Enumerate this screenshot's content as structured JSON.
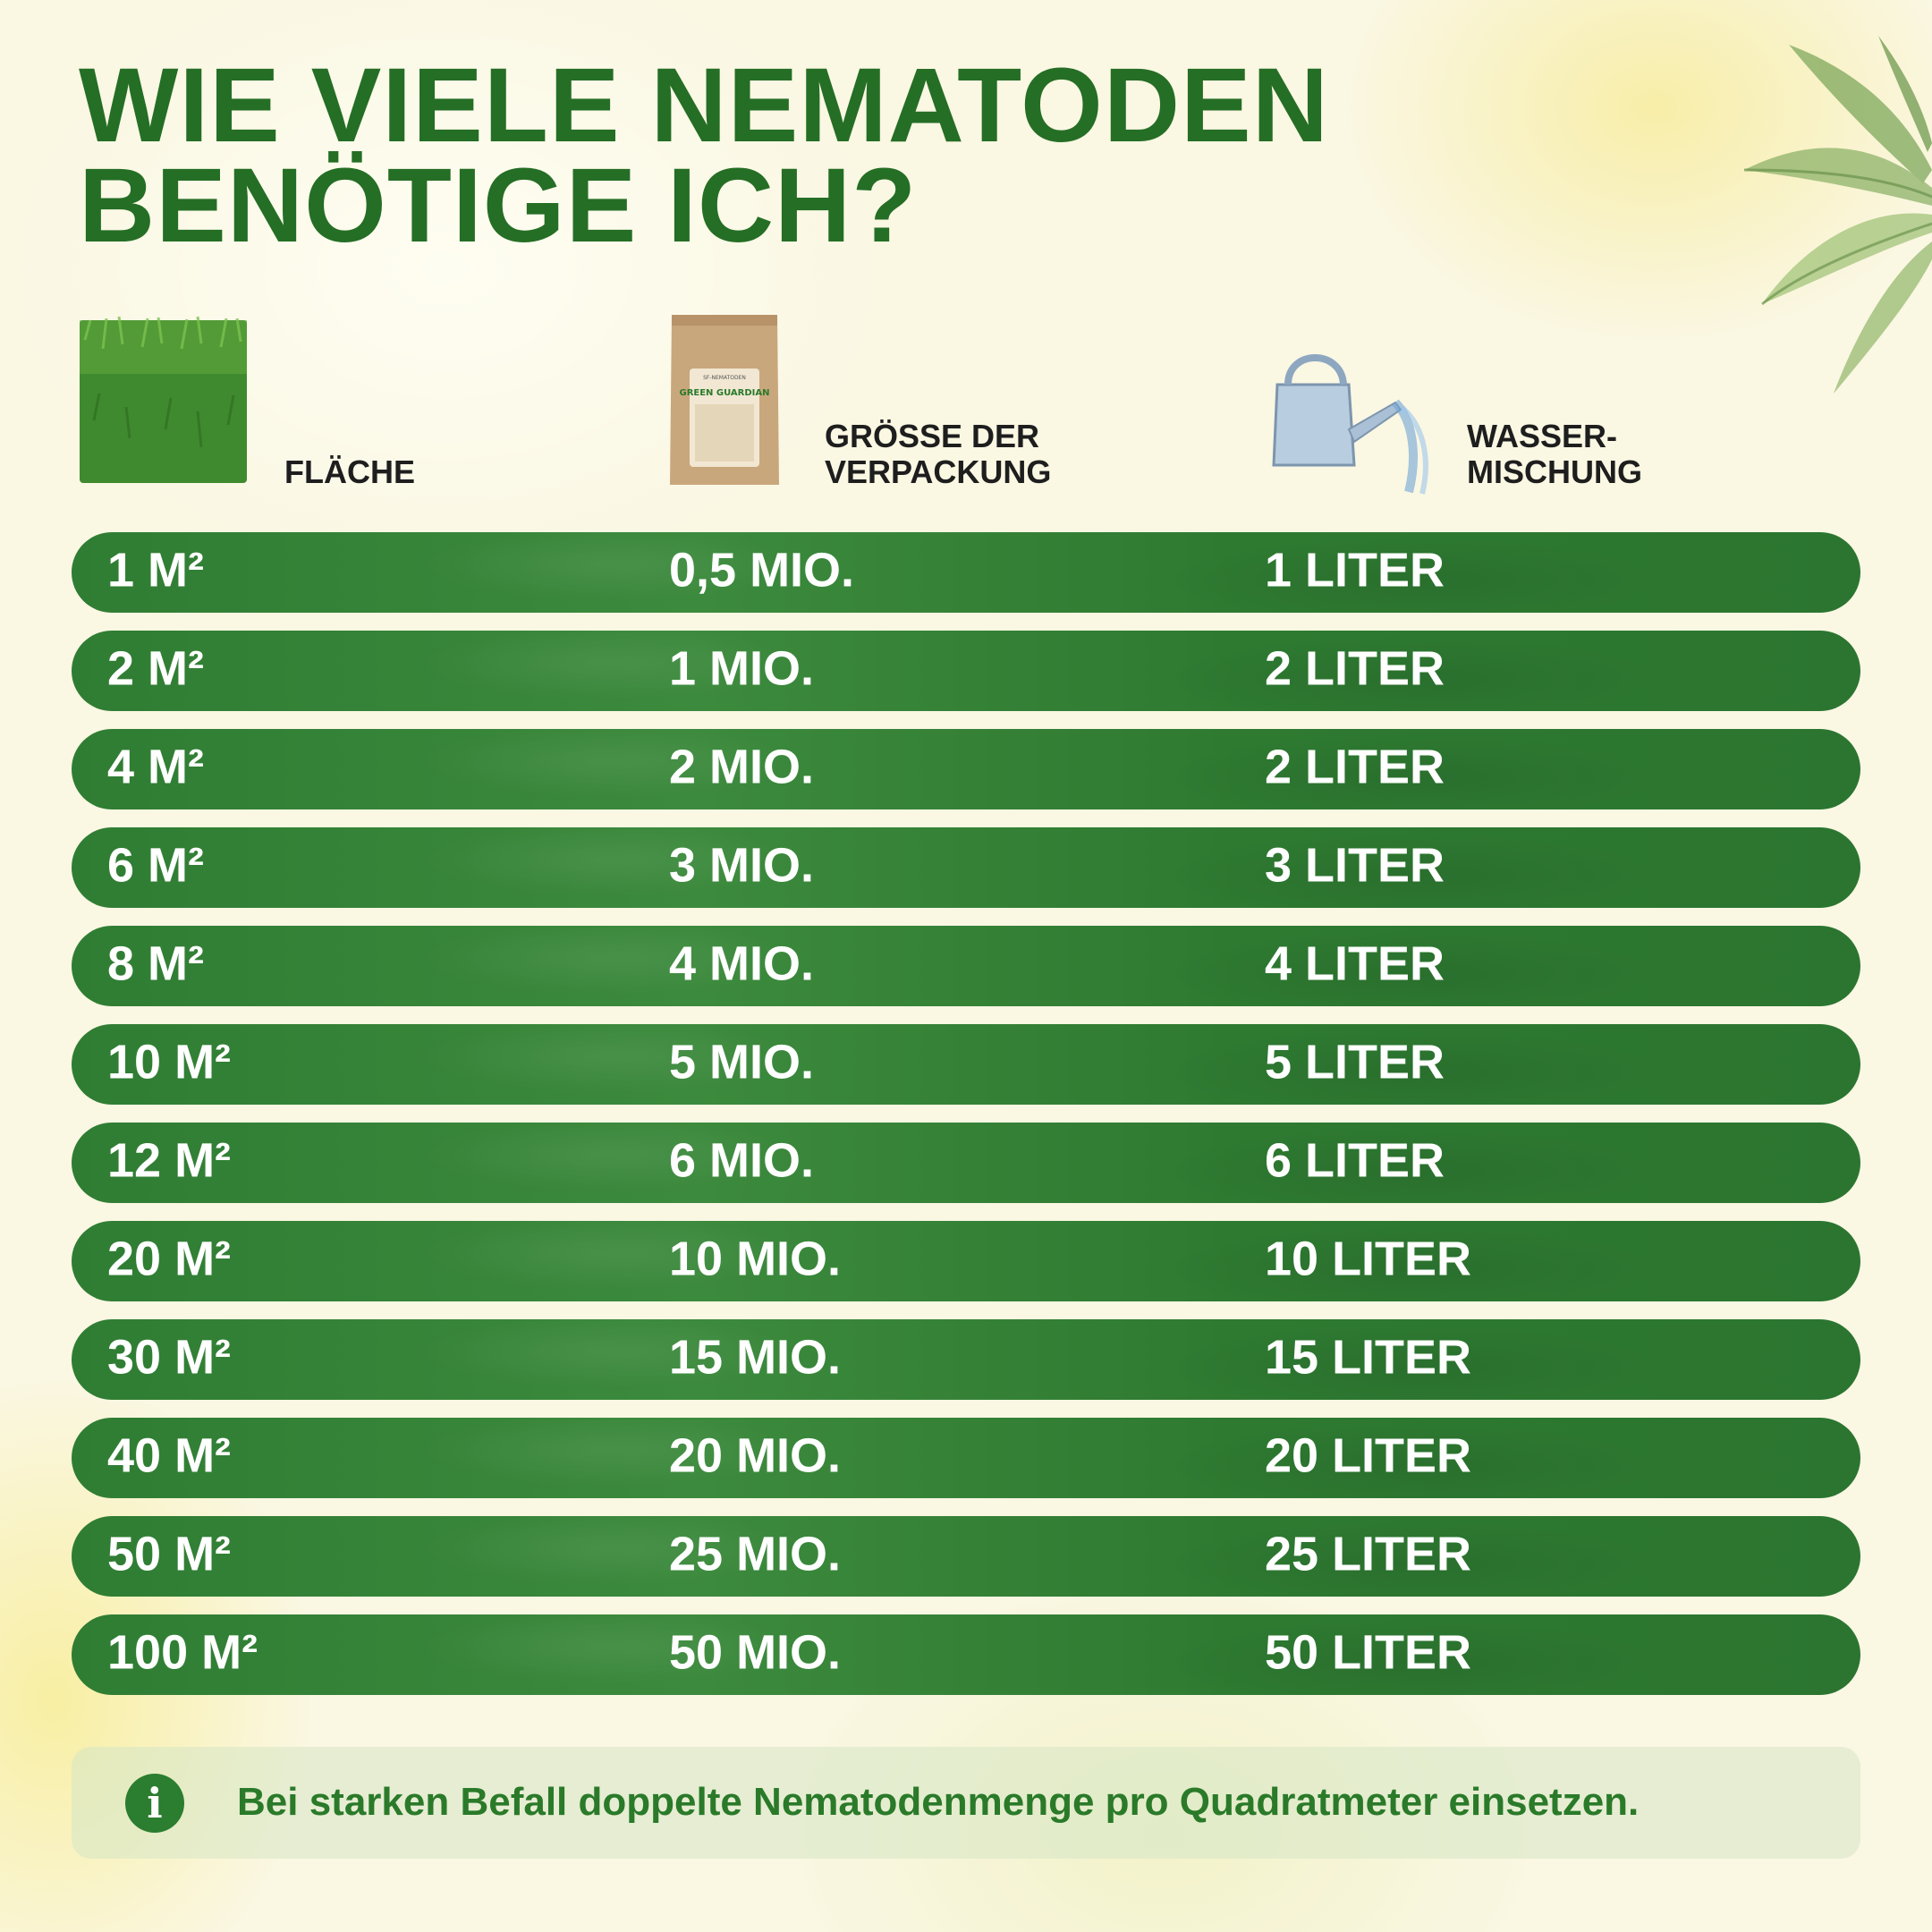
{
  "title_lines": [
    "WIE VIELE NEMATODEN",
    "BENÖTIGE ICH?"
  ],
  "columns": {
    "area": {
      "label_lines": [
        "FLÄCHE"
      ],
      "icon": "grass-icon"
    },
    "package": {
      "label_lines": [
        "GRÖßE DER",
        "VERPACKUNG"
      ],
      "icon": "nematode-package-icon",
      "package_brand": "GREEN GUARDIAN"
    },
    "water": {
      "label_lines": [
        "WASSER-",
        "MISCHUNG"
      ],
      "icon": "watering-can-icon"
    }
  },
  "rows": [
    {
      "area": "1 M²",
      "package": "0,5 MIO.",
      "water": "1 LITER"
    },
    {
      "area": "2 M²",
      "package": "1 MIO.",
      "water": "2 LITER"
    },
    {
      "area": "4 M²",
      "package": "2 MIO.",
      "water": "2 LITER"
    },
    {
      "area": "6 M²",
      "package": "3 MIO.",
      "water": "3 LITER"
    },
    {
      "area": "8 M²",
      "package": "4 MIO.",
      "water": "4 LITER"
    },
    {
      "area": "10 M²",
      "package": "5 MIO.",
      "water": "5 LITER"
    },
    {
      "area": "12 M²",
      "package": "6 MIO.",
      "water": "6 LITER"
    },
    {
      "area": "20 M²",
      "package": "10 MIO.",
      "water": "10 LITER"
    },
    {
      "area": "30 M²",
      "package": "15 MIO.",
      "water": "15 LITER"
    },
    {
      "area": "40 M²",
      "package": "20 MIO.",
      "water": "20 LITER"
    },
    {
      "area": "50 M²",
      "package": "25 MIO.",
      "water": "25 LITER"
    },
    {
      "area": "100 M²",
      "package": "50 MIO.",
      "water": "50 LITER"
    }
  ],
  "info": {
    "icon": "info-icon",
    "glyph": "i",
    "text": "Bei starken Befall doppelte Nematodenmenge pro Quadratmeter einsetzen."
  },
  "colors": {
    "title_green": "#256e25",
    "row_green": "#2f7d33",
    "info_text_green": "#2a7a2a",
    "background": "#faf7e3"
  }
}
